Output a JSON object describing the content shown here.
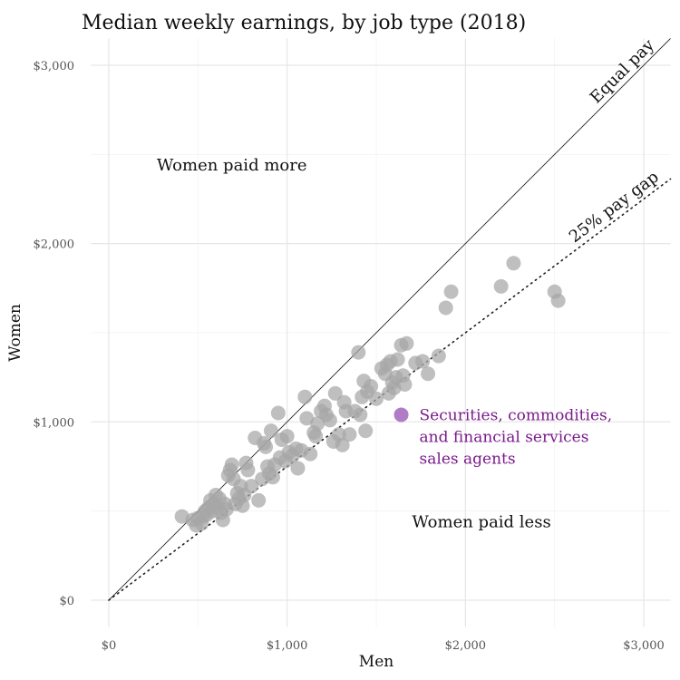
{
  "chart_data": {
    "type": "scatter",
    "title": "Median weekly earnings, by job type (2018)",
    "xlabel": "Men",
    "ylabel": "Women",
    "xlim": [
      -100,
      3150
    ],
    "ylim": [
      -150,
      3150
    ],
    "x_ticks": [
      0,
      1000,
      2000,
      3000
    ],
    "y_ticks": [
      0,
      1000,
      2000,
      3000
    ],
    "x_tick_labels": [
      "$0",
      "$1,000",
      "$2,000",
      "$3,000"
    ],
    "y_tick_labels": [
      "$0",
      "$1,000",
      "$2,000",
      "$3,000"
    ],
    "grid": true,
    "reference_lines": [
      {
        "label": "Equal pay",
        "slope": 1.0,
        "style": "solid"
      },
      {
        "label": "25% pay gap",
        "slope": 0.75,
        "style": "dotted"
      }
    ],
    "annotations": [
      {
        "text": "Women paid more",
        "x": 690,
        "y": 2410
      },
      {
        "text": "Women paid less",
        "x": 2090,
        "y": 410
      }
    ],
    "highlight": {
      "label_lines": [
        "Securities, commodities,",
        "and financial services",
        "sales agents"
      ],
      "x": 1640,
      "y": 1040,
      "color": "#b07cc6"
    },
    "point_color": "#a6a6a6",
    "points": [
      {
        "x": 410,
        "y": 470
      },
      {
        "x": 470,
        "y": 450
      },
      {
        "x": 490,
        "y": 420
      },
      {
        "x": 500,
        "y": 460
      },
      {
        "x": 520,
        "y": 430
      },
      {
        "x": 530,
        "y": 470
      },
      {
        "x": 540,
        "y": 500
      },
      {
        "x": 550,
        "y": 480
      },
      {
        "x": 560,
        "y": 520
      },
      {
        "x": 570,
        "y": 560
      },
      {
        "x": 580,
        "y": 500
      },
      {
        "x": 590,
        "y": 540
      },
      {
        "x": 600,
        "y": 590
      },
      {
        "x": 610,
        "y": 520
      },
      {
        "x": 620,
        "y": 570
      },
      {
        "x": 630,
        "y": 490
      },
      {
        "x": 640,
        "y": 450
      },
      {
        "x": 650,
        "y": 540
      },
      {
        "x": 660,
        "y": 510
      },
      {
        "x": 670,
        "y": 700
      },
      {
        "x": 680,
        "y": 730
      },
      {
        "x": 690,
        "y": 760
      },
      {
        "x": 700,
        "y": 680
      },
      {
        "x": 710,
        "y": 540
      },
      {
        "x": 720,
        "y": 600
      },
      {
        "x": 730,
        "y": 570
      },
      {
        "x": 740,
        "y": 640
      },
      {
        "x": 750,
        "y": 530
      },
      {
        "x": 760,
        "y": 590
      },
      {
        "x": 770,
        "y": 770
      },
      {
        "x": 780,
        "y": 730
      },
      {
        "x": 800,
        "y": 640
      },
      {
        "x": 820,
        "y": 910
      },
      {
        "x": 840,
        "y": 560
      },
      {
        "x": 860,
        "y": 680
      },
      {
        "x": 870,
        "y": 880
      },
      {
        "x": 880,
        "y": 860
      },
      {
        "x": 890,
        "y": 750
      },
      {
        "x": 900,
        "y": 710
      },
      {
        "x": 910,
        "y": 950
      },
      {
        "x": 920,
        "y": 690
      },
      {
        "x": 930,
        "y": 760
      },
      {
        "x": 950,
        "y": 1050
      },
      {
        "x": 960,
        "y": 800
      },
      {
        "x": 970,
        "y": 900
      },
      {
        "x": 990,
        "y": 780
      },
      {
        "x": 1000,
        "y": 920
      },
      {
        "x": 1010,
        "y": 830
      },
      {
        "x": 1030,
        "y": 810
      },
      {
        "x": 1050,
        "y": 850
      },
      {
        "x": 1060,
        "y": 740
      },
      {
        "x": 1080,
        "y": 840
      },
      {
        "x": 1100,
        "y": 1140
      },
      {
        "x": 1110,
        "y": 1020
      },
      {
        "x": 1130,
        "y": 820
      },
      {
        "x": 1150,
        "y": 940
      },
      {
        "x": 1160,
        "y": 920
      },
      {
        "x": 1170,
        "y": 990
      },
      {
        "x": 1190,
        "y": 1060
      },
      {
        "x": 1210,
        "y": 1090
      },
      {
        "x": 1220,
        "y": 1040
      },
      {
        "x": 1240,
        "y": 1010
      },
      {
        "x": 1260,
        "y": 890
      },
      {
        "x": 1270,
        "y": 1160
      },
      {
        "x": 1290,
        "y": 930
      },
      {
        "x": 1310,
        "y": 870
      },
      {
        "x": 1320,
        "y": 1110
      },
      {
        "x": 1330,
        "y": 1060
      },
      {
        "x": 1350,
        "y": 930
      },
      {
        "x": 1380,
        "y": 1060
      },
      {
        "x": 1400,
        "y": 1390
      },
      {
        "x": 1410,
        "y": 1040
      },
      {
        "x": 1420,
        "y": 1140
      },
      {
        "x": 1430,
        "y": 1230
      },
      {
        "x": 1440,
        "y": 950
      },
      {
        "x": 1450,
        "y": 1170
      },
      {
        "x": 1470,
        "y": 1200
      },
      {
        "x": 1500,
        "y": 1130
      },
      {
        "x": 1530,
        "y": 1300
      },
      {
        "x": 1550,
        "y": 1270
      },
      {
        "x": 1560,
        "y": 1320
      },
      {
        "x": 1570,
        "y": 1160
      },
      {
        "x": 1580,
        "y": 1340
      },
      {
        "x": 1590,
        "y": 1220
      },
      {
        "x": 1600,
        "y": 1190
      },
      {
        "x": 1610,
        "y": 1250
      },
      {
        "x": 1620,
        "y": 1350
      },
      {
        "x": 1640,
        "y": 1430
      },
      {
        "x": 1650,
        "y": 1260
      },
      {
        "x": 1660,
        "y": 1210
      },
      {
        "x": 1670,
        "y": 1440
      },
      {
        "x": 1720,
        "y": 1330
      },
      {
        "x": 1760,
        "y": 1340
      },
      {
        "x": 1790,
        "y": 1270
      },
      {
        "x": 1850,
        "y": 1370
      },
      {
        "x": 1890,
        "y": 1640
      },
      {
        "x": 1920,
        "y": 1730
      },
      {
        "x": 2200,
        "y": 1760
      },
      {
        "x": 2270,
        "y": 1890
      },
      {
        "x": 2500,
        "y": 1730
      },
      {
        "x": 2520,
        "y": 1680
      }
    ]
  }
}
